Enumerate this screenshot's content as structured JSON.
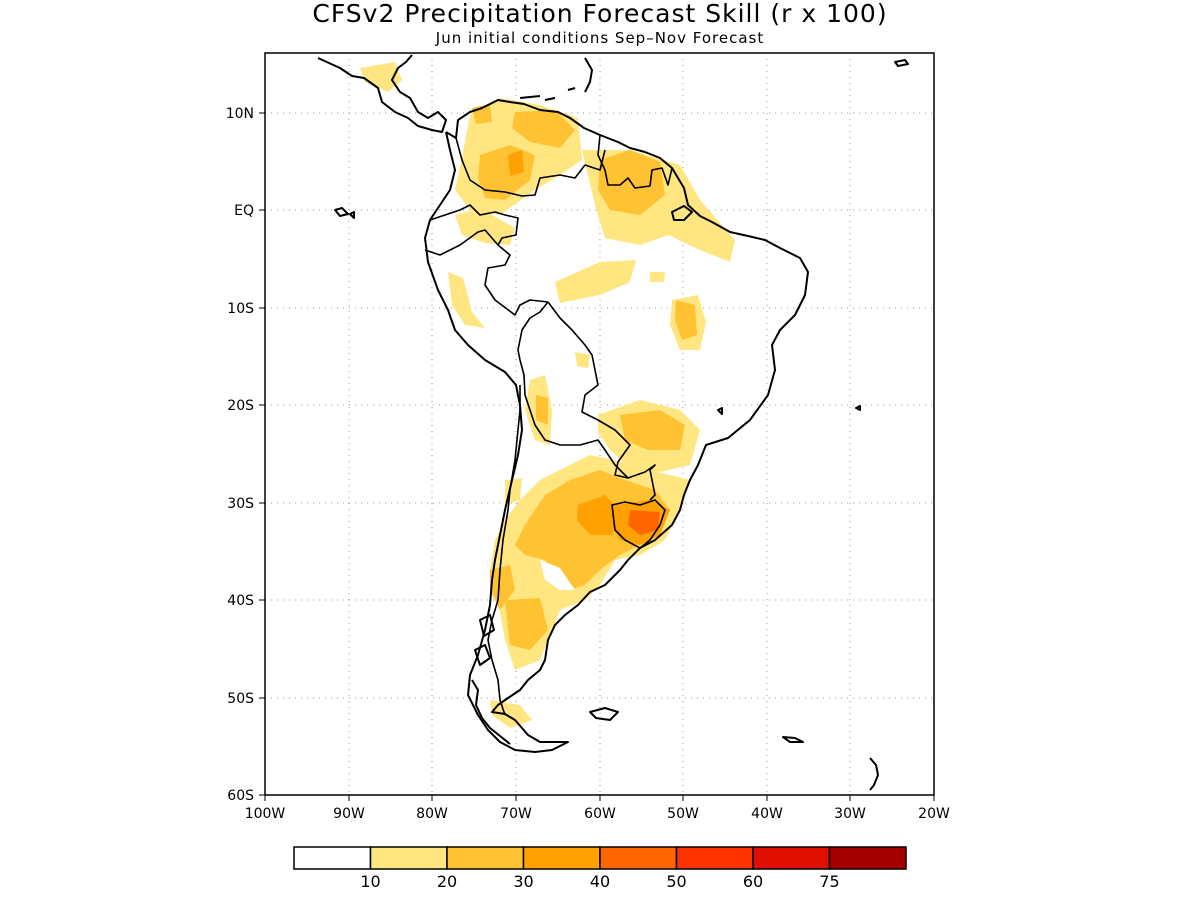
{
  "title": "CFSv2 Precipitation Forecast Skill (r x 100)",
  "subtitle": "Jun initial conditions   Sep–Nov Forecast",
  "lat_labels": [
    "10N",
    "EQ",
    "10S",
    "20S",
    "30S",
    "40S",
    "50S",
    "60S"
  ],
  "lon_labels": [
    "100W",
    "90W",
    "80W",
    "70W",
    "60W",
    "50W",
    "40W",
    "30W",
    "20W"
  ],
  "colorbar": {
    "labels": [
      "10",
      "20",
      "30",
      "40",
      "50",
      "60",
      "75"
    ],
    "colors": [
      "#ffffff",
      "#ffe680",
      "#ffc233",
      "#ffa100",
      "#ff6600",
      "#ff3300",
      "#e01000",
      "#a50000"
    ]
  },
  "map": {
    "lon_range": [
      -100,
      -20
    ],
    "lat_range": [
      -60,
      14
    ],
    "grid": true,
    "field": "precipitation forecast skill (correlation x 100)"
  }
}
